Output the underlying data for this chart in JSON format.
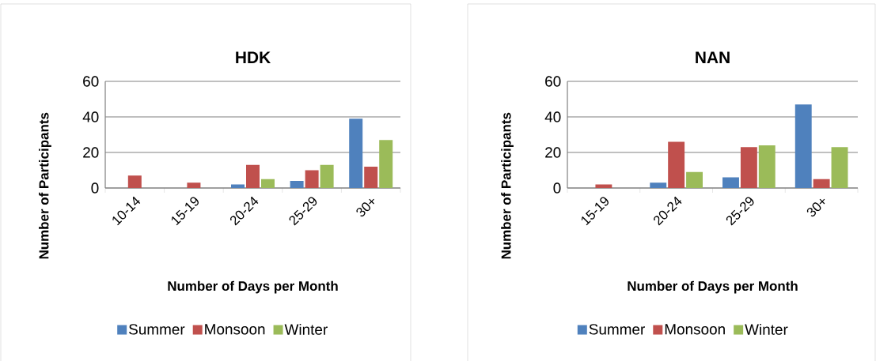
{
  "chart_data": [
    {
      "type": "bar",
      "title": "HDK",
      "xlabel": "Number of Days per Month",
      "ylabel": "Number of Participants",
      "categories": [
        "10-14",
        "15-19",
        "20-24",
        "25-29",
        "30+"
      ],
      "series": [
        {
          "name": "Summer",
          "color": "#4f81bd",
          "values": [
            0,
            0,
            2,
            4,
            39
          ]
        },
        {
          "name": "Monsoon",
          "color": "#c0504d",
          "values": [
            7,
            3,
            13,
            10,
            12
          ]
        },
        {
          "name": "Winter",
          "color": "#9bbb59",
          "values": [
            0,
            0,
            5,
            13,
            27
          ]
        }
      ],
      "ylim": [
        0,
        60
      ],
      "yticks": [
        0,
        20,
        40,
        60
      ],
      "grid": "y",
      "legend": "bottom"
    },
    {
      "type": "bar",
      "title": "NAN",
      "xlabel": "Number of Days per Month",
      "ylabel": "Number of Participants",
      "categories": [
        "15-19",
        "20-24",
        "25-29",
        "30+"
      ],
      "series": [
        {
          "name": "Summer",
          "color": "#4f81bd",
          "values": [
            0,
            3,
            6,
            47
          ]
        },
        {
          "name": "Monsoon",
          "color": "#c0504d",
          "values": [
            2,
            26,
            23,
            5
          ]
        },
        {
          "name": "Winter",
          "color": "#9bbb59",
          "values": [
            0,
            9,
            24,
            23
          ]
        }
      ],
      "ylim": [
        0,
        60
      ],
      "yticks": [
        0,
        20,
        40,
        60
      ],
      "grid": "y",
      "legend": "bottom"
    }
  ]
}
